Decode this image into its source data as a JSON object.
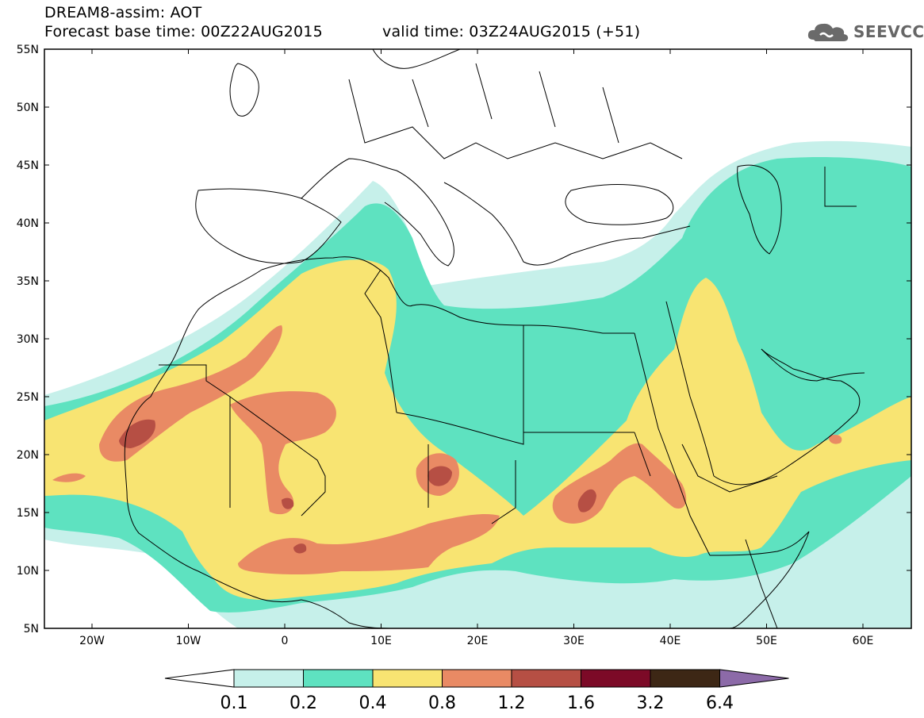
{
  "header": {
    "line1": "DREAM8-assim: AOT",
    "line2": "Forecast base time: 00Z22AUG2015",
    "valid": "valid time: 03Z24AUG2015 (+51)",
    "logo_text": "SEEVCCC",
    "logo_icon": "cloud-icon"
  },
  "axes": {
    "lat_labels": [
      "55N",
      "50N",
      "45N",
      "40N",
      "35N",
      "30N",
      "25N",
      "20N",
      "15N",
      "10N",
      "5N"
    ],
    "lon_labels": [
      "20W",
      "10W",
      "0",
      "10E",
      "20E",
      "30E",
      "40E",
      "50E",
      "60E"
    ]
  },
  "colorbar": {
    "levels": [
      "0.1",
      "0.2",
      "0.4",
      "0.8",
      "1.2",
      "1.6",
      "3.2",
      "6.4"
    ],
    "colors": [
      "#ffffff",
      "#c6f0ea",
      "#5ee2c0",
      "#f8e472",
      "#e98a64",
      "#b64f44",
      "#7c0a27",
      "#3d2715",
      "#8c6aa8"
    ]
  },
  "colors": {
    "low": "#c6f0ea",
    "mid": "#5ee2c0",
    "yellow": "#f8e472",
    "orange": "#e98a64",
    "red": "#b64f44"
  }
}
